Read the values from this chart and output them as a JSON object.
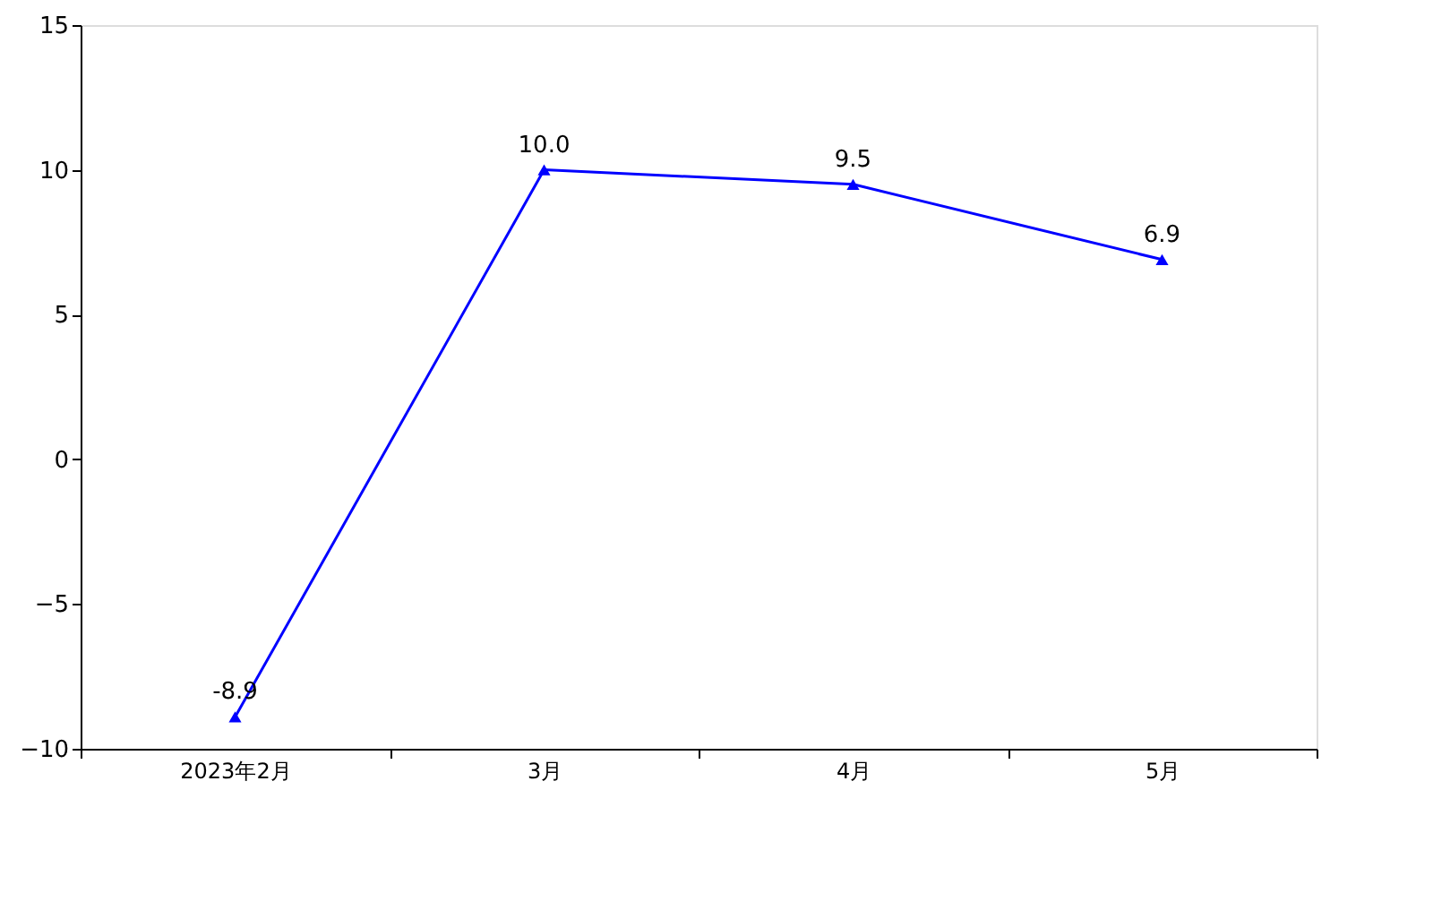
{
  "chart_data": {
    "type": "line",
    "categories": [
      "2023年2月",
      "3月",
      "4月",
      "5月"
    ],
    "series": [
      {
        "color": "#0000ff",
        "values": [
          -8.9,
          10.0,
          9.5,
          6.9
        ],
        "value_labels": [
          "-8.9",
          "10.0",
          "9.5",
          "6.9"
        ]
      }
    ],
    "ylim": [
      -10,
      15
    ],
    "yticks": [
      -10,
      -5,
      0,
      5,
      10,
      15
    ],
    "grid": false,
    "marker": "triangle",
    "line_style": "solid"
  }
}
